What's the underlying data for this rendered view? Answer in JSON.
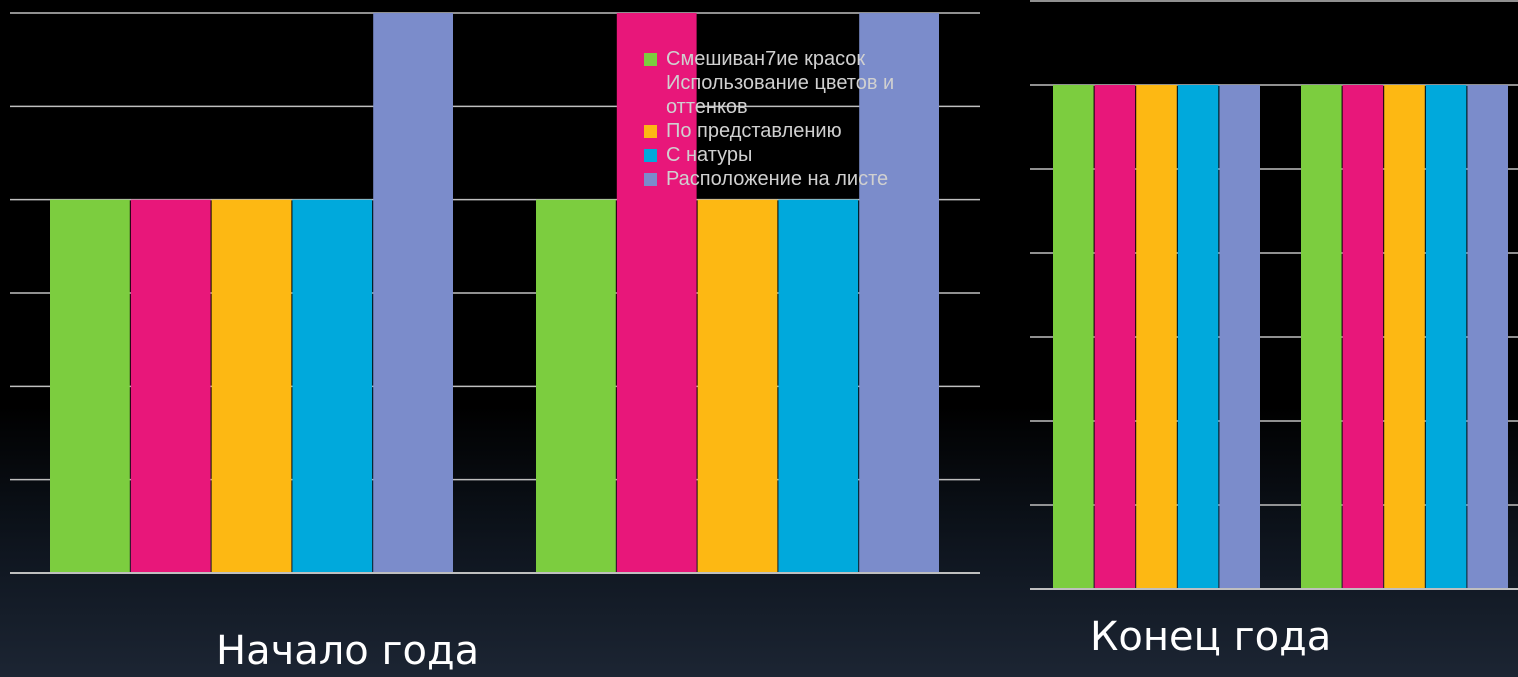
{
  "chart_data": [
    {
      "type": "bar",
      "title": "Начало года",
      "categories": [
        "",
        ""
      ],
      "ylim": [
        0,
        6
      ],
      "grid": true,
      "legend_position": "top-right",
      "series": [
        {
          "name": "Смешиван7ие красок",
          "color": "#7ccd3f",
          "values": [
            4,
            4
          ]
        },
        {
          "name": "Использование цветов и оттенков",
          "color": "#e8177a",
          "values": [
            4,
            6
          ]
        },
        {
          "name": "По представлению",
          "color": "#fdb813",
          "values": [
            4,
            4
          ]
        },
        {
          "name": "С натуры",
          "color": "#00a9dc",
          "values": [
            4,
            4
          ]
        },
        {
          "name": "Расположение на листе",
          "color": "#7b8ccb",
          "values": [
            6,
            6
          ]
        }
      ],
      "legend_entries": [
        {
          "label": "Смешиван7ие красок",
          "color": "#7ccd3f"
        },
        {
          "label": "Использование цветов и\nоттенков",
          "color": ""
        },
        {
          "label": "По представлению",
          "color": "#fdb813"
        },
        {
          "label": "С натуры",
          "color": "#00a9dc"
        },
        {
          "label": "Расположение на листе",
          "color": "#7b8ccb"
        }
      ]
    },
    {
      "type": "bar",
      "title": "Конец года",
      "categories": [
        "",
        ""
      ],
      "ylim": [
        0,
        7
      ],
      "grid": true,
      "series": [
        {
          "name": "Смешиван7ие красок",
          "color": "#7ccd3f",
          "values": [
            6,
            6
          ]
        },
        {
          "name": "Использование цветов и оттенков",
          "color": "#e8177a",
          "values": [
            6,
            6
          ]
        },
        {
          "name": "По представлению",
          "color": "#fdb813",
          "values": [
            6,
            6
          ]
        },
        {
          "name": "С натуры",
          "color": "#00a9dc",
          "values": [
            6,
            6
          ]
        },
        {
          "name": "Расположение на листе",
          "color": "#7b8ccb",
          "values": [
            6,
            6
          ]
        }
      ]
    }
  ],
  "captions": {
    "left": "Начало года",
    "right": "Конец года"
  },
  "colors": {
    "gridline": "#bfbfbf",
    "background": "#000000"
  }
}
